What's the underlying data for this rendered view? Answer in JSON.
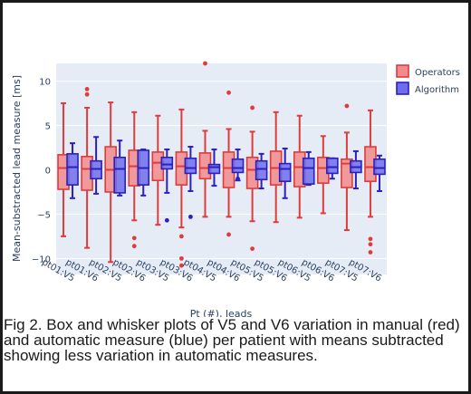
{
  "caption": "Fig 2. Box and whisker plots of V5 and V6 variation in manual (red) and automatic measure (blue) per patient with means subtracted showing less variation in automatic measures.",
  "chart_data": {
    "type": "box",
    "xlabel": "Pt (#), leads",
    "ylabel": "Mean-substracted lead measure [ms]",
    "ylim": [
      -11.8,
      12
    ],
    "yticks": [
      -10,
      -5,
      0,
      5,
      10
    ],
    "grid": true,
    "legend_position": "top-right",
    "categories": [
      "pt01:V5",
      "pt01:V6",
      "pt02:V5",
      "pt02:V6",
      "pt03:V5",
      "pt03:V6",
      "pt04:V5",
      "pt04:V6",
      "pt05:V5",
      "pt05:V6",
      "pt06:V5",
      "pt06:V6",
      "pt07:V5",
      "pt07:V6"
    ],
    "series": [
      {
        "name": "Operators",
        "fill": "#f28b8b",
        "stroke": "#e03b3b",
        "boxes": [
          {
            "low": -7.5,
            "q1": -2.2,
            "median": 0.2,
            "q3": 1.7,
            "high": 7.5,
            "outliers": []
          },
          {
            "low": -8.8,
            "q1": -2.3,
            "median": 0.1,
            "q3": 1.5,
            "high": 7.0,
            "outliers": [
              8.5,
              9.1
            ]
          },
          {
            "low": -10.4,
            "q1": -2.5,
            "median": 0.0,
            "q3": 2.6,
            "high": 7.6,
            "outliers": []
          },
          {
            "low": -5.7,
            "q1": -1.8,
            "median": 0.4,
            "q3": 2.2,
            "high": 6.5,
            "outliers": [
              -7.7,
              -8.6
            ]
          },
          {
            "low": -6.2,
            "q1": -1.2,
            "median": 0.8,
            "q3": 2.0,
            "high": 6.1,
            "outliers": []
          },
          {
            "low": -6.5,
            "q1": -1.7,
            "median": 0.4,
            "q3": 2.0,
            "high": 6.8,
            "outliers": [
              -7.5,
              -10.0,
              -10.8
            ]
          },
          {
            "low": -5.3,
            "q1": -1.0,
            "median": 0.2,
            "q3": 1.9,
            "high": 4.4,
            "outliers": [
              12.0
            ]
          },
          {
            "low": -5.3,
            "q1": -2.0,
            "median": 0.2,
            "q3": 2.0,
            "high": 4.6,
            "outliers": [
              8.7,
              -7.3
            ]
          },
          {
            "low": -5.8,
            "q1": -2.1,
            "median": 0.0,
            "q3": 1.4,
            "high": 4.3,
            "outliers": [
              7.0,
              -8.9
            ]
          },
          {
            "low": -5.9,
            "q1": -1.7,
            "median": 0.2,
            "q3": 2.1,
            "high": 6.5,
            "outliers": []
          },
          {
            "low": -5.4,
            "q1": -1.9,
            "median": 0.3,
            "q3": 2.0,
            "high": 6.1,
            "outliers": []
          },
          {
            "low": -4.9,
            "q1": -1.5,
            "median": 0.2,
            "q3": 1.4,
            "high": 3.8,
            "outliers": []
          },
          {
            "low": -6.8,
            "q1": -2.0,
            "median": 0.7,
            "q3": 1.2,
            "high": 4.2,
            "outliers": [
              7.2
            ]
          },
          {
            "low": -5.3,
            "q1": -1.3,
            "median": 0.3,
            "q3": 2.6,
            "high": 6.7,
            "outliers": [
              -7.8,
              -8.4,
              -9.3
            ]
          }
        ]
      },
      {
        "name": "Algorithm",
        "fill": "#6e6eea",
        "stroke": "#2a1fc4",
        "boxes": [
          {
            "low": -3.2,
            "q1": -1.7,
            "median": 0.3,
            "q3": 1.8,
            "high": 3.0,
            "outliers": []
          },
          {
            "low": -2.7,
            "q1": -1.0,
            "median": 0.1,
            "q3": 1.0,
            "high": 3.7,
            "outliers": []
          },
          {
            "low": -2.9,
            "q1": -2.6,
            "median": 0.1,
            "q3": 1.4,
            "high": 3.3,
            "outliers": []
          },
          {
            "low": -2.9,
            "q1": -1.7,
            "median": 0.2,
            "q3": 2.2,
            "high": 2.3,
            "outliers": []
          },
          {
            "low": -2.6,
            "q1": 0.1,
            "median": 0.6,
            "q3": 1.4,
            "high": 2.3,
            "outliers": [
              -5.7
            ]
          },
          {
            "low": -2.4,
            "q1": -0.4,
            "median": 0.2,
            "q3": 1.3,
            "high": 2.6,
            "outliers": [
              -5.3
            ]
          },
          {
            "low": -1.8,
            "q1": -0.4,
            "median": 0.3,
            "q3": 0.6,
            "high": 2.3,
            "outliers": []
          },
          {
            "low": -1.2,
            "q1": -0.3,
            "median": 0.2,
            "q3": 1.2,
            "high": 2.3,
            "outliers": [
              -1.0
            ]
          },
          {
            "low": -2.1,
            "q1": -1.1,
            "median": 0.1,
            "q3": 1.0,
            "high": 1.8,
            "outliers": []
          },
          {
            "low": -3.2,
            "q1": -1.3,
            "median": 0.1,
            "q3": 0.7,
            "high": 2.4,
            "outliers": []
          },
          {
            "low": -1.7,
            "q1": -1.6,
            "median": 0.2,
            "q3": 1.3,
            "high": 2.0,
            "outliers": []
          },
          {
            "low": -1.0,
            "q1": -0.4,
            "median": 0.3,
            "q3": 1.3,
            "high": 1.3,
            "outliers": []
          },
          {
            "low": -2.1,
            "q1": -0.3,
            "median": 0.3,
            "q3": 1.0,
            "high": 2.1,
            "outliers": []
          },
          {
            "low": -2.4,
            "q1": -0.5,
            "median": 0.2,
            "q3": 1.2,
            "high": 1.6,
            "outliers": []
          }
        ]
      }
    ]
  }
}
